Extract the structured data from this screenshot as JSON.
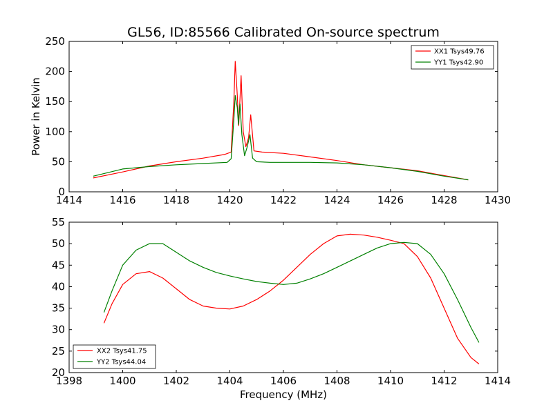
{
  "figure": {
    "title": "GL56, ID:85566 Calibrated On-source spectrum"
  },
  "colors": {
    "red": "#ff0000",
    "green": "#008000"
  },
  "chart_data": [
    {
      "type": "line",
      "title": "GL56, ID:85566 Calibrated On-source spectrum",
      "xlabel": "",
      "ylabel": "Power in Kelvin",
      "xlim": [
        1414,
        1430
      ],
      "ylim": [
        0,
        250
      ],
      "xticks": [
        1414,
        1416,
        1418,
        1420,
        1422,
        1424,
        1426,
        1428,
        1430
      ],
      "yticks": [
        0,
        50,
        100,
        150,
        200,
        250
      ],
      "grid": false,
      "legend_position": "top-right",
      "series": [
        {
          "name": "XX1 Tsys49.76",
          "color": "#ff0000",
          "x": [
            1414.9,
            1416,
            1417,
            1418,
            1419,
            1419.8,
            1420.05,
            1420.15,
            1420.2,
            1420.28,
            1420.33,
            1420.42,
            1420.5,
            1420.6,
            1420.7,
            1420.78,
            1420.9,
            1421.2,
            1422,
            1423,
            1424,
            1425,
            1426,
            1427,
            1428,
            1428.9
          ],
          "values": [
            23,
            33,
            43,
            50,
            56,
            62,
            66,
            150,
            217,
            160,
            110,
            193,
            100,
            75,
            90,
            128,
            68,
            66,
            64,
            58,
            52,
            45,
            40,
            35,
            27,
            20
          ]
        },
        {
          "name": "YY1 Tsys42.90",
          "color": "#008000",
          "x": [
            1414.9,
            1416,
            1417,
            1418,
            1419,
            1419.9,
            1420.05,
            1420.15,
            1420.2,
            1420.28,
            1420.32,
            1420.38,
            1420.45,
            1420.55,
            1420.65,
            1420.75,
            1420.85,
            1421,
            1421.5,
            1422,
            1423,
            1424,
            1425,
            1426,
            1427,
            1428,
            1428.9
          ],
          "values": [
            26,
            38,
            42,
            45,
            47,
            49,
            55,
            120,
            160,
            140,
            112,
            146,
            95,
            60,
            75,
            95,
            56,
            50,
            49,
            49,
            49,
            48,
            45,
            40,
            34,
            26,
            20
          ]
        }
      ]
    },
    {
      "type": "line",
      "title": "",
      "xlabel": "Frequency (MHz)",
      "ylabel": "",
      "xlim": [
        1398,
        1414
      ],
      "ylim": [
        20,
        55
      ],
      "xticks": [
        1398,
        1400,
        1402,
        1404,
        1406,
        1408,
        1410,
        1412,
        1414
      ],
      "yticks": [
        20,
        25,
        30,
        35,
        40,
        45,
        50,
        55
      ],
      "grid": false,
      "legend_position": "bottom-left",
      "series": [
        {
          "name": "XX2 Tsys41.75",
          "color": "#ff0000",
          "x": [
            1399.3,
            1399.6,
            1400,
            1400.5,
            1401,
            1401.5,
            1402,
            1402.5,
            1403,
            1403.5,
            1404,
            1404.5,
            1405,
            1405.5,
            1406,
            1406.5,
            1407,
            1407.5,
            1408,
            1408.5,
            1409,
            1409.5,
            1410,
            1410.5,
            1411,
            1411.5,
            1412,
            1412.5,
            1413,
            1413.3
          ],
          "values": [
            31.5,
            36,
            40.5,
            43,
            43.5,
            42,
            39.5,
            37,
            35.5,
            35,
            34.8,
            35.5,
            37,
            39,
            41.5,
            44.5,
            47.5,
            50,
            51.8,
            52.2,
            52,
            51.5,
            50.8,
            50,
            47,
            42,
            35,
            28,
            23.5,
            22
          ]
        },
        {
          "name": "YY2 Tsys44.04",
          "color": "#008000",
          "x": [
            1399.3,
            1399.6,
            1400,
            1400.5,
            1401,
            1401.5,
            1402,
            1402.5,
            1403,
            1403.5,
            1404,
            1404.5,
            1405,
            1405.5,
            1406,
            1406.5,
            1407,
            1407.5,
            1408,
            1408.5,
            1409,
            1409.5,
            1410,
            1410.5,
            1411,
            1411.5,
            1412,
            1412.5,
            1413,
            1413.3
          ],
          "values": [
            34,
            39,
            45,
            48.5,
            50,
            50,
            48,
            46,
            44.5,
            43.3,
            42.5,
            41.8,
            41.2,
            40.8,
            40.5,
            40.8,
            41.8,
            43,
            44.5,
            46,
            47.5,
            49,
            50,
            50.3,
            50,
            47.5,
            43,
            37,
            30.5,
            27
          ]
        }
      ]
    }
  ]
}
